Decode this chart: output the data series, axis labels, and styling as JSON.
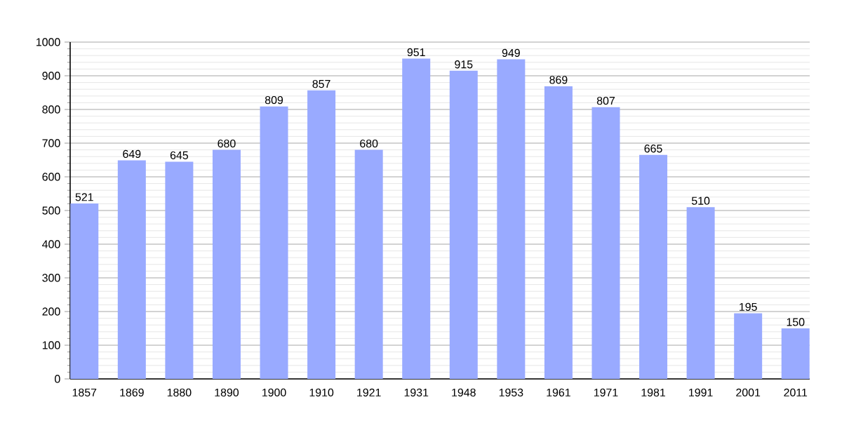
{
  "chart_data": {
    "type": "bar",
    "categories": [
      "1857",
      "1869",
      "1880",
      "1890",
      "1900",
      "1910",
      "1921",
      "1931",
      "1948",
      "1953",
      "1961",
      "1971",
      "1981",
      "1991",
      "2001",
      "2011"
    ],
    "values": [
      521,
      649,
      645,
      680,
      809,
      857,
      680,
      951,
      915,
      949,
      869,
      807,
      665,
      510,
      195,
      150
    ],
    "color": "#99aaff",
    "ylim": [
      0,
      1000
    ],
    "yticks": [
      0,
      100,
      200,
      300,
      400,
      500,
      600,
      700,
      800,
      900,
      1000
    ],
    "grid": "y",
    "data_labels": true
  }
}
